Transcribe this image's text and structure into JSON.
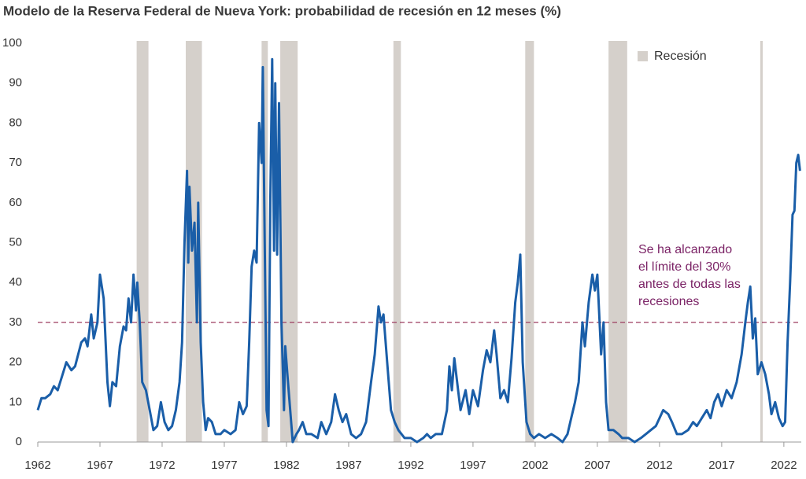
{
  "chart_data": {
    "type": "line",
    "title": "Modelo de la Reserva Federal de Nueva York: probabilidad de recesión en 12 meses (%)",
    "color": "#1a5ea8",
    "x": [
      1962.0,
      1962.3,
      1962.6,
      1963.0,
      1963.3,
      1963.6,
      1964.0,
      1964.3,
      1964.7,
      1965.0,
      1965.5,
      1965.8,
      1966.0,
      1966.3,
      1966.5,
      1966.8,
      1967.0,
      1967.3,
      1967.6,
      1967.8,
      1968.0,
      1968.3,
      1968.6,
      1968.9,
      1969.1,
      1969.3,
      1969.5,
      1969.7,
      1969.9,
      1970.0,
      1970.2,
      1970.4,
      1970.7,
      1971.0,
      1971.3,
      1971.6,
      1971.9,
      1972.2,
      1972.5,
      1972.8,
      1973.1,
      1973.4,
      1973.6,
      1973.8,
      1974.0,
      1974.1,
      1974.2,
      1974.4,
      1974.6,
      1974.8,
      1974.9,
      1975.1,
      1975.3,
      1975.5,
      1975.7,
      1976.0,
      1976.3,
      1976.7,
      1977.0,
      1977.5,
      1977.9,
      1978.2,
      1978.5,
      1978.8,
      1979.0,
      1979.2,
      1979.4,
      1979.6,
      1979.8,
      1980.0,
      1980.1,
      1980.25,
      1980.4,
      1980.55,
      1980.7,
      1980.85,
      1981.0,
      1981.1,
      1981.25,
      1981.4,
      1981.6,
      1981.8,
      1981.9,
      1982.1,
      1982.3,
      1982.5,
      1982.8,
      1983.0,
      1983.3,
      1983.6,
      1984.0,
      1984.5,
      1984.8,
      1985.2,
      1985.6,
      1985.9,
      1986.2,
      1986.5,
      1986.8,
      1987.2,
      1987.6,
      1988.0,
      1988.4,
      1988.8,
      1989.1,
      1989.4,
      1989.6,
      1989.8,
      1990.1,
      1990.4,
      1990.7,
      1991.0,
      1991.5,
      1992.0,
      1992.5,
      1993.0,
      1993.3,
      1993.6,
      1994.0,
      1994.5,
      1994.9,
      1995.1,
      1995.3,
      1995.5,
      1995.8,
      1996.0,
      1996.4,
      1996.7,
      1997.0,
      1997.4,
      1997.8,
      1998.1,
      1998.4,
      1998.7,
      1998.9,
      1999.2,
      1999.5,
      1999.8,
      2000.1,
      2000.4,
      2000.6,
      2000.8,
      2001.0,
      2001.3,
      2001.6,
      2001.9,
      2002.3,
      2002.8,
      2003.3,
      2003.8,
      2004.2,
      2004.6,
      2004.9,
      2005.2,
      2005.5,
      2005.8,
      2006.0,
      2006.3,
      2006.6,
      2006.8,
      2007.0,
      2007.3,
      2007.5,
      2007.7,
      2007.9,
      2008.3,
      2008.7,
      2009.0,
      2009.5,
      2010.0,
      2010.5,
      2010.9,
      2011.3,
      2011.7,
      2012.0,
      2012.3,
      2012.7,
      2013.0,
      2013.4,
      2013.8,
      2014.3,
      2014.7,
      2015.0,
      2015.4,
      2015.8,
      2016.1,
      2016.4,
      2016.7,
      2017.0,
      2017.4,
      2017.8,
      2018.2,
      2018.6,
      2018.9,
      2019.1,
      2019.3,
      2019.5,
      2019.7,
      2019.9,
      2020.2,
      2020.5,
      2020.8,
      2021.0,
      2021.3,
      2021.6,
      2021.9,
      2022.1,
      2022.3,
      2022.5,
      2022.7,
      2022.85,
      2023.0,
      2023.15,
      2023.3
    ],
    "values": [
      8,
      11,
      11,
      12,
      14,
      13,
      17,
      20,
      18,
      19,
      25,
      26,
      24,
      32,
      26,
      30,
      42,
      36,
      15,
      9,
      15,
      14,
      24,
      29,
      28,
      36,
      30,
      42,
      33,
      40,
      30,
      15,
      13,
      8,
      3,
      4,
      10,
      5,
      3,
      4,
      8,
      15,
      25,
      50,
      68,
      45,
      64,
      48,
      55,
      30,
      60,
      25,
      10,
      3,
      6,
      5,
      2,
      2,
      3,
      2,
      3,
      10,
      7,
      9,
      25,
      44,
      48,
      45,
      80,
      70,
      94,
      50,
      8,
      4,
      60,
      96,
      48,
      90,
      47,
      85,
      30,
      8,
      24,
      16,
      8,
      0,
      2,
      3,
      5,
      2,
      2,
      1,
      5,
      2,
      5,
      12,
      8,
      5,
      7,
      2,
      1,
      2,
      5,
      15,
      22,
      34,
      30,
      32,
      20,
      8,
      5,
      3,
      1,
      1,
      0,
      1,
      2,
      1,
      2,
      2,
      8,
      19,
      13,
      21,
      13,
      8,
      13,
      7,
      13,
      9,
      18,
      23,
      20,
      28,
      22,
      11,
      13,
      10,
      21,
      35,
      40,
      47,
      20,
      5,
      2,
      1,
      2,
      1,
      2,
      1,
      0,
      2,
      6,
      10,
      15,
      30,
      24,
      35,
      42,
      38,
      42,
      22,
      30,
      10,
      3,
      3,
      2,
      1,
      1,
      0,
      1,
      2,
      3,
      4,
      6,
      8,
      7,
      5,
      2,
      2,
      3,
      5,
      4,
      6,
      8,
      6,
      10,
      12,
      9,
      13,
      11,
      15,
      22,
      30,
      35,
      39,
      26,
      31,
      17,
      20,
      17,
      12,
      7,
      10,
      6,
      4,
      5,
      25,
      40,
      57,
      58,
      70,
      72,
      68
    ],
    "xlim": [
      1962,
      2023.4
    ],
    "xticks": [
      1962,
      1967,
      1972,
      1977,
      1982,
      1987,
      1992,
      1997,
      2002,
      2007,
      2012,
      2017,
      2022
    ],
    "ylim": [
      0,
      100
    ],
    "yticks": [
      0,
      10,
      20,
      30,
      40,
      50,
      60,
      70,
      80,
      90,
      100
    ],
    "recession_color": "#d5d0cb",
    "recessions": [
      {
        "start": 1969.95,
        "end": 1970.9
      },
      {
        "start": 1973.9,
        "end": 1975.2
      },
      {
        "start": 1980.0,
        "end": 1980.5
      },
      {
        "start": 1981.5,
        "end": 1982.9
      },
      {
        "start": 1990.6,
        "end": 1991.2
      },
      {
        "start": 2001.2,
        "end": 2001.9
      },
      {
        "start": 2007.9,
        "end": 2009.4
      },
      {
        "start": 2020.1,
        "end": 2020.3
      }
    ],
    "legend": "Recesión",
    "threshold": 30,
    "threshold_color": "#9b3a5e",
    "annotation": [
      "Se ha alcanzado",
      "el límite del 30%",
      "antes de todas las",
      "recesiones"
    ],
    "annotation_color": "#7b2366"
  }
}
